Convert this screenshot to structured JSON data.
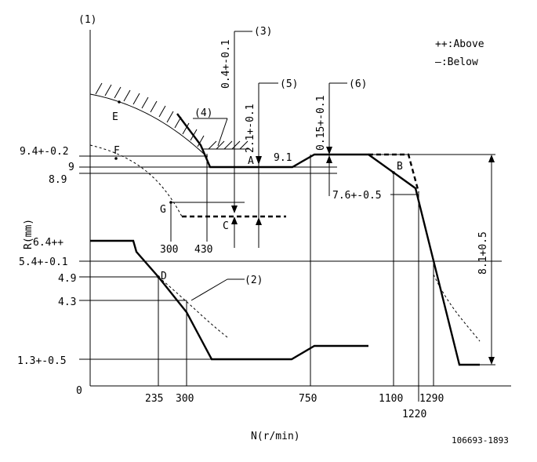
{
  "labels": {
    "y_axis_marker": "(1)",
    "y_axis_title": "R(mm)",
    "x_axis_title": "N(r/min)",
    "origin": "0",
    "drawing_no": "106693-1893",
    "legend_above": "++:Above",
    "legend_below": "—:Below",
    "callout_2": "(2)",
    "callout_3": "(3)",
    "callout_4": "(4)",
    "callout_5": "(5)",
    "callout_6": "(6)",
    "val_3": "0.4+-0.1",
    "val_5": "2.1+-0.1",
    "val_6": "0.15+-0.1",
    "val_81": "8.1+0.5",
    "val_76": "7.6+-0.5",
    "val_91": "9.1",
    "point_A": "A",
    "point_B": "B",
    "point_C": "C",
    "point_D": "D",
    "point_E": "E",
    "point_F": "F",
    "point_G": "G",
    "n_300_g": "300",
    "n_430": "430"
  },
  "y_ticks": [
    "9.4+-0.2",
    "9",
    "8.9",
    "6.4++",
    "5.4+-0.1",
    "4.9",
    "4.3",
    "1.3+-0.5"
  ],
  "x_ticks": [
    "235",
    "300",
    "750",
    "1100",
    "1220",
    "1290"
  ]
}
